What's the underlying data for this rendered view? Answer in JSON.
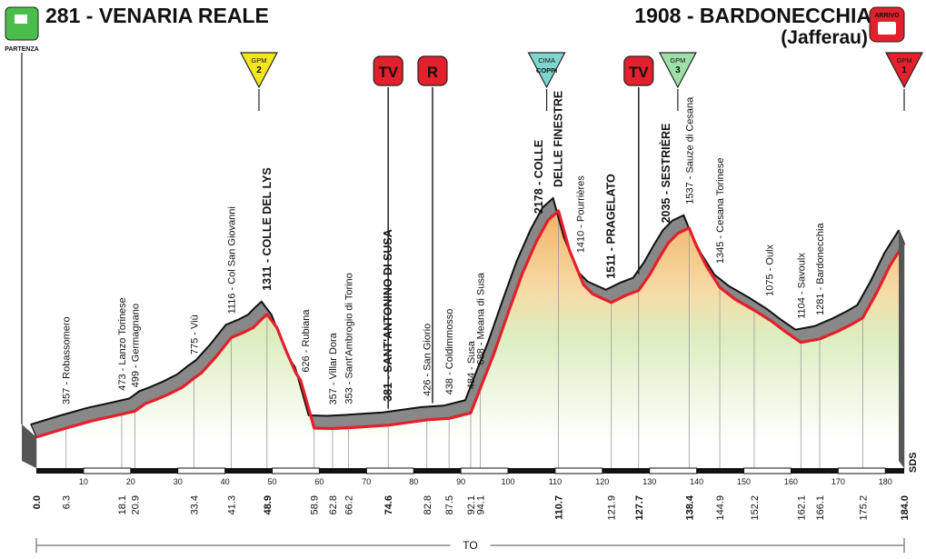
{
  "header": {
    "start": "281 - VENARIA REALE",
    "finish": "1908 - BARDONECCHIA",
    "finish_sub": "(Jafferau)",
    "start_badge": "PARTENZA",
    "finish_badge": "ARRIVO",
    "start_icon": "start-flag-icon",
    "finish_icon": "finish-camera-icon"
  },
  "markers": [
    {
      "type": "gpm",
      "top": "GPM",
      "num": "2",
      "km": 47.2,
      "color": "#f3e61e"
    },
    {
      "type": "tv",
      "text": "TV",
      "km": 74.6
    },
    {
      "type": "r",
      "text": "R",
      "km": 84.0
    },
    {
      "type": "gpm",
      "top": "CIMA",
      "num": "COPPI",
      "km": 108.2,
      "color": "#7fd6cf"
    },
    {
      "type": "tv",
      "text": "TV",
      "km": 127.7
    },
    {
      "type": "gpm",
      "top": "GPM",
      "num": "3",
      "km": 136.0,
      "color": "#9fe0a8"
    },
    {
      "type": "gpm",
      "top": "GPM",
      "num": "1",
      "km": 184.0,
      "color": "#e3202c"
    }
  ],
  "colors": {
    "profile_line": "#e3202c",
    "road": "#888888",
    "shadow": "#555555",
    "tv_badge": "#e3202c"
  },
  "chart_data": {
    "type": "area",
    "title": "",
    "xlabel": "TO",
    "ylabel": "",
    "xlim": [
      0,
      184
    ],
    "x_ticks": [
      10,
      20,
      30,
      40,
      50,
      60,
      70,
      80,
      90,
      100,
      110,
      120,
      130,
      140,
      150,
      160,
      170,
      180
    ],
    "km_labels": [
      "0.0",
      "6.3",
      "18.1",
      "20.9",
      "33.4",
      "41.3",
      "48.9",
      "58.9",
      "62.8",
      "66.2",
      "74.6",
      "82.8",
      "87.5",
      "92.1",
      "94.1",
      "110.7",
      "121.9",
      "127.7",
      "138.4",
      "144.9",
      "152.2",
      "162.1",
      "166.1",
      "175.2",
      "184.0"
    ],
    "bold_km_labels": [
      "0.0",
      "48.9",
      "74.6",
      "110.7",
      "127.7",
      "138.4",
      "184.0"
    ],
    "profile": [
      {
        "km": 0,
        "alt": 281
      },
      {
        "km": 6.3,
        "alt": 357
      },
      {
        "km": 12,
        "alt": 420
      },
      {
        "km": 18.1,
        "alt": 473
      },
      {
        "km": 20.9,
        "alt": 499
      },
      {
        "km": 23,
        "alt": 560
      },
      {
        "km": 25,
        "alt": 590
      },
      {
        "km": 28,
        "alt": 640
      },
      {
        "km": 31,
        "alt": 700
      },
      {
        "km": 33.4,
        "alt": 775
      },
      {
        "km": 35,
        "alt": 820
      },
      {
        "km": 38,
        "alt": 950
      },
      {
        "km": 41.3,
        "alt": 1116
      },
      {
        "km": 44,
        "alt": 1160
      },
      {
        "km": 46,
        "alt": 1200
      },
      {
        "km": 47.5,
        "alt": 1260
      },
      {
        "km": 48.9,
        "alt": 1311
      },
      {
        "km": 51,
        "alt": 1200
      },
      {
        "km": 53,
        "alt": 1000
      },
      {
        "km": 55,
        "alt": 820
      },
      {
        "km": 56,
        "alt": 760
      },
      {
        "km": 57,
        "alt": 626
      },
      {
        "km": 58.9,
        "alt": 357
      },
      {
        "km": 62.8,
        "alt": 353
      },
      {
        "km": 66.2,
        "alt": 360
      },
      {
        "km": 74.6,
        "alt": 381
      },
      {
        "km": 82.8,
        "alt": 426
      },
      {
        "km": 87.5,
        "alt": 438
      },
      {
        "km": 92.1,
        "alt": 484
      },
      {
        "km": 94.1,
        "alt": 688
      },
      {
        "km": 97,
        "alt": 980
      },
      {
        "km": 100,
        "alt": 1320
      },
      {
        "km": 103,
        "alt": 1650
      },
      {
        "km": 106,
        "alt": 1920
      },
      {
        "km": 108.5,
        "alt": 2100
      },
      {
        "km": 110.7,
        "alt": 2178
      },
      {
        "km": 113,
        "alt": 1850
      },
      {
        "km": 116,
        "alt": 1560
      },
      {
        "km": 118,
        "alt": 1480
      },
      {
        "km": 121.9,
        "alt": 1410
      },
      {
        "km": 125,
        "alt": 1470
      },
      {
        "km": 127.7,
        "alt": 1511
      },
      {
        "km": 130,
        "alt": 1640
      },
      {
        "km": 132,
        "alt": 1780
      },
      {
        "km": 134,
        "alt": 1910
      },
      {
        "km": 136,
        "alt": 1990
      },
      {
        "km": 138.4,
        "alt": 2035
      },
      {
        "km": 140,
        "alt": 1880
      },
      {
        "km": 142,
        "alt": 1720
      },
      {
        "km": 144.9,
        "alt": 1537
      },
      {
        "km": 148,
        "alt": 1440
      },
      {
        "km": 152.2,
        "alt": 1345
      },
      {
        "km": 156,
        "alt": 1250
      },
      {
        "km": 159,
        "alt": 1160
      },
      {
        "km": 162.1,
        "alt": 1075
      },
      {
        "km": 166.1,
        "alt": 1104
      },
      {
        "km": 170,
        "alt": 1170
      },
      {
        "km": 173,
        "alt": 1230
      },
      {
        "km": 175.2,
        "alt": 1281
      },
      {
        "km": 178,
        "alt": 1480
      },
      {
        "km": 181,
        "alt": 1720
      },
      {
        "km": 184,
        "alt": 1908
      }
    ],
    "place_labels": [
      {
        "km": 6.3,
        "text": "357 - Robassomero",
        "bold": false
      },
      {
        "km": 18.1,
        "text": "473 - Lanzo Torinese",
        "bold": false
      },
      {
        "km": 20.9,
        "text": "499 - Germagnano",
        "bold": false
      },
      {
        "km": 33.4,
        "text": "775 - Viù",
        "bold": false
      },
      {
        "km": 41.3,
        "text": "1116 - Col San Giovanni",
        "bold": false
      },
      {
        "km": 48.9,
        "text": "1311 - COLLE DEL LYS",
        "bold": true
      },
      {
        "km": 57.0,
        "text": "626 - Rubiana",
        "bold": false
      },
      {
        "km": 62.8,
        "text": "357 - Villar Dora",
        "bold": false
      },
      {
        "km": 66.2,
        "text": "353 - Sant'Ambrogio di Torino",
        "bold": false
      },
      {
        "km": 74.6,
        "text": "381 - SANT'ANTONINO DI SUSA",
        "bold": true
      },
      {
        "km": 82.8,
        "text": "426 - San Giorio",
        "bold": false
      },
      {
        "km": 87.5,
        "text": "438 - Coldimmosso",
        "bold": false
      },
      {
        "km": 92.1,
        "text": "484 - Susa",
        "bold": false
      },
      {
        "km": 94.1,
        "text": "688 - Meana di Susa",
        "bold": false
      },
      {
        "km": 106.5,
        "text": "2178 - COLLE",
        "bold": true
      },
      {
        "km": 110.7,
        "text": "DELLE FINESTRE",
        "bold": true
      },
      {
        "km": 115.3,
        "text": "1410 - Pourrières",
        "bold": false
      },
      {
        "km": 121.9,
        "text": "1511 - PRAGELATO",
        "bold": true
      },
      {
        "km": 133.5,
        "text": "2035 - SESTRIÈRE",
        "bold": true
      },
      {
        "km": 138.4,
        "text": "1537 - Sauze di Cesana",
        "bold": false
      },
      {
        "km": 144.9,
        "text": "1345 - Cesana Torinese",
        "bold": false
      },
      {
        "km": 155.4,
        "text": "1075 - Oulx",
        "bold": false
      },
      {
        "km": 162.1,
        "text": "1104 - Savoulx",
        "bold": false
      },
      {
        "km": 166.1,
        "text": "1281 - Bardonecchia",
        "bold": false
      }
    ]
  }
}
